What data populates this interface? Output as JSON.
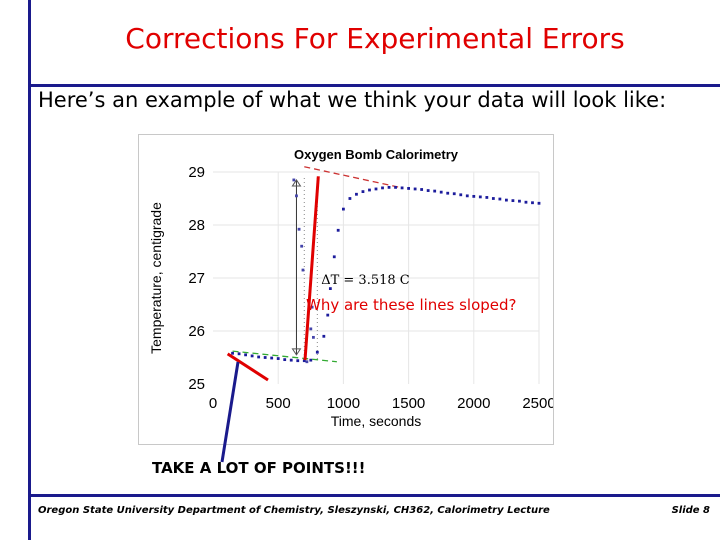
{
  "slide": {
    "title": "Corrections For Experimental Errors",
    "subtitle": "Here’s an example of what we think your data will look like:",
    "annotation_slope": "Why are these lines sloped?",
    "annotation_points": "TAKE A LOT OF POINTS!!!",
    "footer": "Oregon State University Department of Chemistry, Sleszynski, CH362, Calorimetry Lecture",
    "slide_number": "Slide 8",
    "colors": {
      "accent_red": "#e00000",
      "rule_blue": "#1a1a8c",
      "data_blue": "#1c1c9c",
      "fit_green": "#33aa33",
      "fit_red": "#cc3333"
    }
  },
  "chart_data": {
    "type": "scatter",
    "title": "Oxygen Bomb Calorimetry",
    "xlabel": "Time, seconds",
    "ylabel": "Temperature, centigrade",
    "xlim": [
      0,
      2500
    ],
    "ylim": [
      25,
      29
    ],
    "xticks": [
      "0",
      "500",
      "1000",
      "1500",
      "2000",
      "2500"
    ],
    "yticks": [
      "25",
      "26",
      "27",
      "28",
      "29"
    ],
    "delta_t_label": "ΔT = 3.518 C",
    "series": [
      {
        "values": [
          [
            150,
            25.58
          ],
          [
            200,
            25.57
          ],
          [
            250,
            25.55
          ],
          [
            300,
            25.53
          ],
          [
            350,
            25.51
          ],
          [
            400,
            25.5
          ],
          [
            450,
            25.49
          ],
          [
            500,
            25.48
          ],
          [
            550,
            25.46
          ],
          [
            600,
            25.45
          ],
          [
            650,
            25.44
          ],
          [
            700,
            25.44
          ],
          [
            750,
            25.45
          ],
          [
            800,
            25.6
          ],
          [
            850,
            25.9
          ],
          [
            880,
            26.3
          ],
          [
            900,
            26.8
          ],
          [
            930,
            27.4
          ],
          [
            960,
            27.9
          ],
          [
            1000,
            28.3
          ],
          [
            1050,
            28.5
          ],
          [
            1100,
            28.58
          ],
          [
            1150,
            28.63
          ],
          [
            1200,
            28.66
          ],
          [
            1250,
            28.68
          ],
          [
            1300,
            28.7
          ],
          [
            1350,
            28.71
          ],
          [
            1400,
            28.71
          ],
          [
            1450,
            28.7
          ],
          [
            1500,
            28.69
          ],
          [
            1550,
            28.68
          ],
          [
            1600,
            28.67
          ],
          [
            1650,
            28.65
          ],
          [
            1700,
            28.64
          ],
          [
            1750,
            28.62
          ],
          [
            1800,
            28.6
          ],
          [
            1850,
            28.59
          ],
          [
            1900,
            28.57
          ],
          [
            1950,
            28.55
          ],
          [
            2000,
            28.54
          ],
          [
            2050,
            28.53
          ],
          [
            2100,
            28.52
          ],
          [
            2150,
            28.5
          ],
          [
            2200,
            28.49
          ],
          [
            2250,
            28.47
          ],
          [
            2300,
            28.46
          ],
          [
            2350,
            28.45
          ],
          [
            2400,
            28.43
          ],
          [
            2450,
            28.42
          ],
          [
            2500,
            28.41
          ]
        ]
      },
      {
        "values": [
          [
            620,
            28.85
          ],
          [
            640,
            28.55
          ],
          [
            660,
            27.92
          ],
          [
            680,
            27.6
          ],
          [
            690,
            27.15
          ],
          [
            750,
            26.04
          ],
          [
            760,
            26.45
          ],
          [
            770,
            25.88
          ],
          [
            720,
            25.42
          ]
        ]
      }
    ],
    "fit_lines": [
      {
        "color": "green",
        "points": [
          [
            150,
            25.62
          ],
          [
            950,
            25.42
          ]
        ]
      },
      {
        "color": "red",
        "points": [
          [
            700,
            29.1
          ],
          [
            1450,
            28.7
          ]
        ]
      }
    ]
  }
}
